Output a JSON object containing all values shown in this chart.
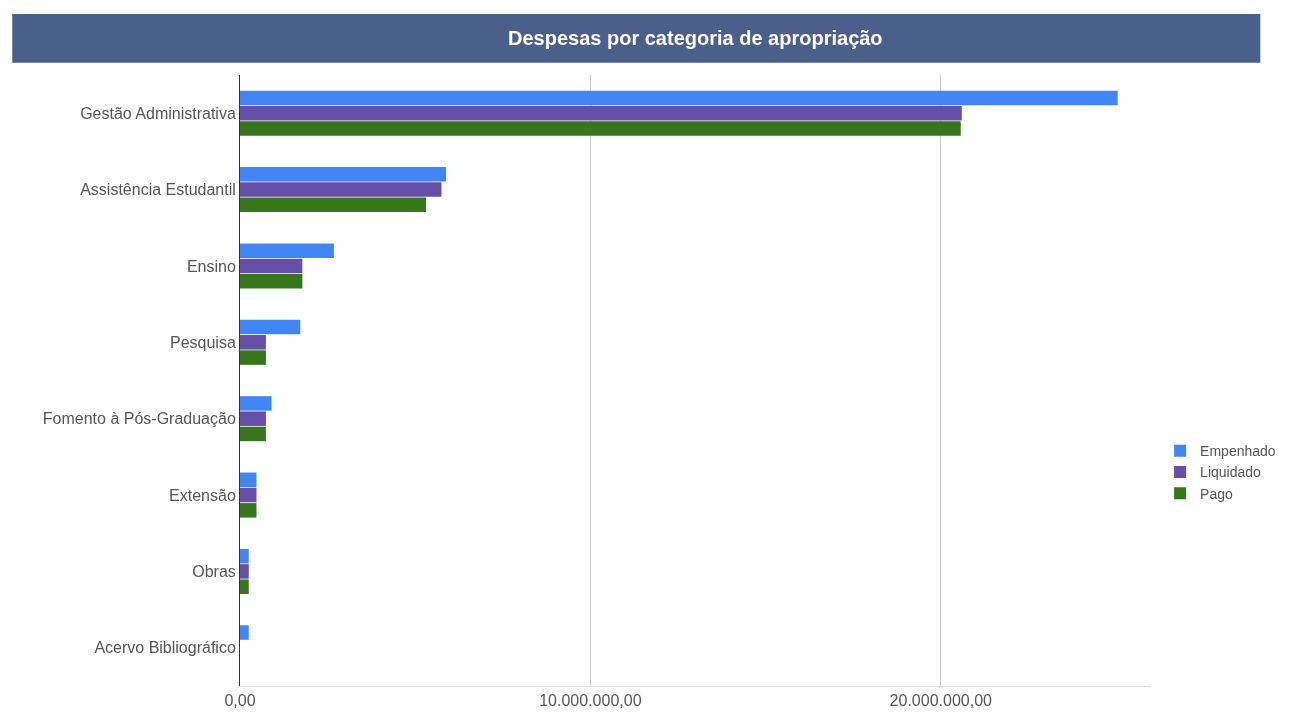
{
  "chart_data": {
    "type": "bar",
    "orientation": "horizontal",
    "title": "Despesas por categoria de apropriação",
    "categories": [
      "Gestão Administrativa",
      "Assistência Estudantil",
      "Ensino",
      "Pesquisa",
      "Fomento à Pós-Graduação",
      "Extensão",
      "Obras",
      "Acervo Bibliográfico"
    ],
    "series": [
      {
        "name": "Empenhado",
        "color": "#4285f4",
        "values": [
          25050000,
          5880000,
          2680000,
          1720000,
          900000,
          470000,
          250000,
          250000
        ]
      },
      {
        "name": "Liquidado",
        "color": "#674ea7",
        "values": [
          20600000,
          5750000,
          1780000,
          740000,
          740000,
          470000,
          250000,
          0
        ]
      },
      {
        "name": "Pago",
        "color": "#38761d",
        "values": [
          20570000,
          5310000,
          1780000,
          740000,
          740000,
          470000,
          250000,
          0
        ]
      }
    ],
    "xlim": [
      0,
      26000000
    ],
    "xticks": [
      {
        "value": 0,
        "label": "0,00"
      },
      {
        "value": 10000000,
        "label": "10.000.000,00"
      },
      {
        "value": 20000000,
        "label": "20.000.000,00"
      }
    ],
    "grid": "x",
    "legend": "right"
  }
}
